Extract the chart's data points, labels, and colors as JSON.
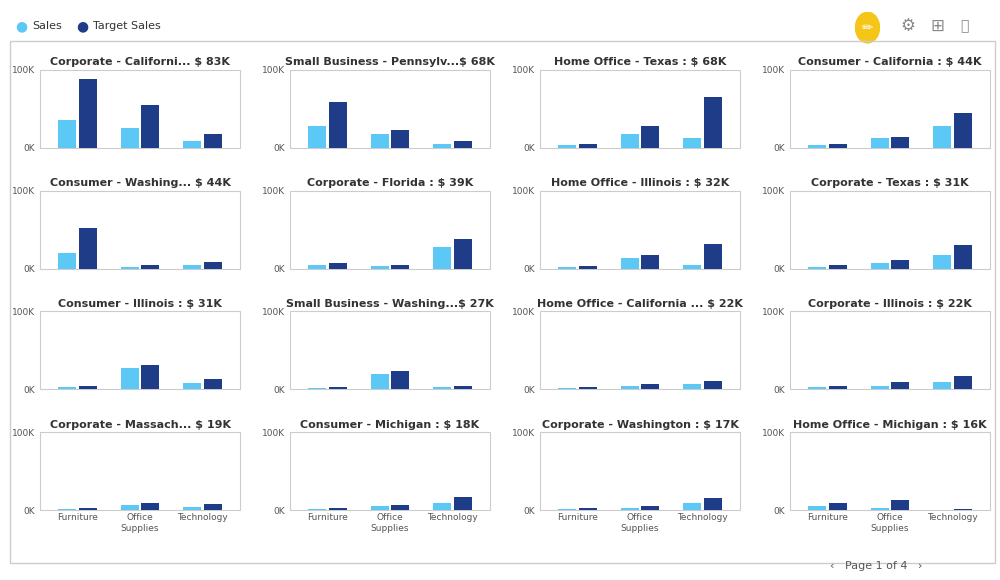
{
  "subplots": [
    {
      "title": "Corporate - Californi... $ 83K",
      "sales": [
        35000,
        25000,
        8000
      ],
      "target_sales": [
        88000,
        55000,
        18000
      ]
    },
    {
      "title": "Small Business - Pennsylv...$ 68K",
      "sales": [
        28000,
        18000,
        5000
      ],
      "target_sales": [
        58000,
        22000,
        8000
      ]
    },
    {
      "title": "Home Office - Texas : $ 68K",
      "sales": [
        3000,
        18000,
        12000
      ],
      "target_sales": [
        4000,
        28000,
        65000
      ]
    },
    {
      "title": "Consumer - California : $ 44K",
      "sales": [
        3000,
        12000,
        28000
      ],
      "target_sales": [
        5000,
        14000,
        44000
      ]
    },
    {
      "title": "Consumer - Washing... $ 44K",
      "sales": [
        20000,
        2000,
        4000
      ],
      "target_sales": [
        52000,
        4000,
        9000
      ]
    },
    {
      "title": "Corporate - Florida : $ 39K",
      "sales": [
        4000,
        3000,
        27000
      ],
      "target_sales": [
        7000,
        5000,
        38000
      ]
    },
    {
      "title": "Home Office - Illinois : $ 32K",
      "sales": [
        2000,
        13000,
        4000
      ],
      "target_sales": [
        3000,
        17000,
        31000
      ]
    },
    {
      "title": "Corporate - Texas : $ 31K",
      "sales": [
        2000,
        7000,
        18000
      ],
      "target_sales": [
        4000,
        11000,
        30000
      ]
    },
    {
      "title": "Consumer - Illinois : $ 31K",
      "sales": [
        3000,
        28000,
        8000
      ],
      "target_sales": [
        5000,
        32000,
        14000
      ]
    },
    {
      "title": "Small Business - Washing...$ 27K",
      "sales": [
        2000,
        20000,
        3000
      ],
      "target_sales": [
        3000,
        24000,
        5000
      ]
    },
    {
      "title": "Home Office - California ... $ 22K",
      "sales": [
        2000,
        4000,
        7000
      ],
      "target_sales": [
        3000,
        7000,
        11000
      ]
    },
    {
      "title": "Corporate - Illinois : $ 22K",
      "sales": [
        3000,
        5000,
        10000
      ],
      "target_sales": [
        5000,
        9000,
        17000
      ]
    },
    {
      "title": "Corporate - Massach... $ 19K",
      "sales": [
        2000,
        7000,
        4000
      ],
      "target_sales": [
        2500,
        9000,
        8000
      ]
    },
    {
      "title": "Consumer - Michigan : $ 18K",
      "sales": [
        2000,
        5000,
        9000
      ],
      "target_sales": [
        2500,
        7000,
        17000
      ]
    },
    {
      "title": "Corporate - Washington : $ 17K",
      "sales": [
        2000,
        3000,
        9000
      ],
      "target_sales": [
        3000,
        5000,
        16000
      ]
    },
    {
      "title": "Home Office - Michigan : $ 16K",
      "sales": [
        5000,
        3000,
        800
      ],
      "target_sales": [
        9000,
        13000,
        1500
      ]
    }
  ],
  "categories": [
    "Furniture",
    "Office\nSupplies",
    "Technology"
  ],
  "ylim": [
    0,
    100000
  ],
  "yticks": [
    0,
    100000
  ],
  "ytick_labels": [
    "0K",
    "100K"
  ],
  "sales_color": "#5BC8F5",
  "target_color": "#1F3C88",
  "bg_color": "#FFFFFF",
  "panel_bg": "#FFFFFF",
  "border_color": "#CCCCCC",
  "grid_rows": 4,
  "grid_cols": 4,
  "page_text": "Page 1 of 4",
  "title_fontsize": 8,
  "tick_fontsize": 6.5,
  "cat_fontsize": 6.5
}
